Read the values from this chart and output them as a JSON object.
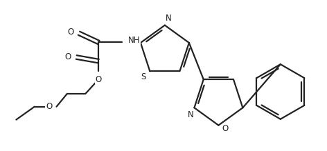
{
  "background_color": "#ffffff",
  "line_color": "#222222",
  "line_width": 1.6,
  "font_size": 8.5,
  "fig_width": 4.72,
  "fig_height": 2.19,
  "dpi": 100,
  "xlim": [
    0,
    4.72
  ],
  "ylim": [
    0,
    2.19
  ]
}
